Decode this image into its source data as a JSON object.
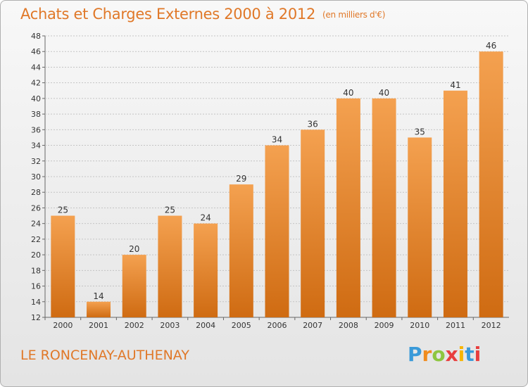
{
  "header": {
    "title": "Achats et Charges Externes 2000 à 2012",
    "unit": "(en milliers d'€)"
  },
  "footer": {
    "commune": "LE RONCENAY-AUTHENAY",
    "logo_letters": [
      "P",
      "r",
      "o",
      "x",
      "i",
      "t",
      "i"
    ],
    "logo_colors": [
      "#3a9ad9",
      "#f08c1e",
      "#8dc63f",
      "#e83e3e",
      "#f7b500",
      "#3a9ad9",
      "#e83e3e"
    ]
  },
  "colors": {
    "bar_top": "#f4a150",
    "bar_bottom": "#cf6b12",
    "accent": "#e07828"
  },
  "chart_data": {
    "type": "bar",
    "categories": [
      "2000",
      "2001",
      "2002",
      "2003",
      "2004",
      "2005",
      "2006",
      "2007",
      "2008",
      "2009",
      "2010",
      "2011",
      "2012"
    ],
    "values": [
      25,
      14,
      20,
      25,
      24,
      29,
      34,
      36,
      40,
      40,
      35,
      41,
      46
    ],
    "value_labels": [
      "25",
      "14",
      "20",
      "25",
      "24",
      "29",
      "34",
      "36",
      "40",
      "40",
      "35",
      "41",
      "46"
    ],
    "yticks": [
      "12",
      "14",
      "16",
      "18",
      "20",
      "22",
      "24",
      "26",
      "28",
      "30",
      "32",
      "34",
      "36",
      "38",
      "40",
      "42",
      "44",
      "46",
      "48"
    ],
    "ylim": [
      12,
      48
    ],
    "grid": true,
    "legend": "none"
  }
}
